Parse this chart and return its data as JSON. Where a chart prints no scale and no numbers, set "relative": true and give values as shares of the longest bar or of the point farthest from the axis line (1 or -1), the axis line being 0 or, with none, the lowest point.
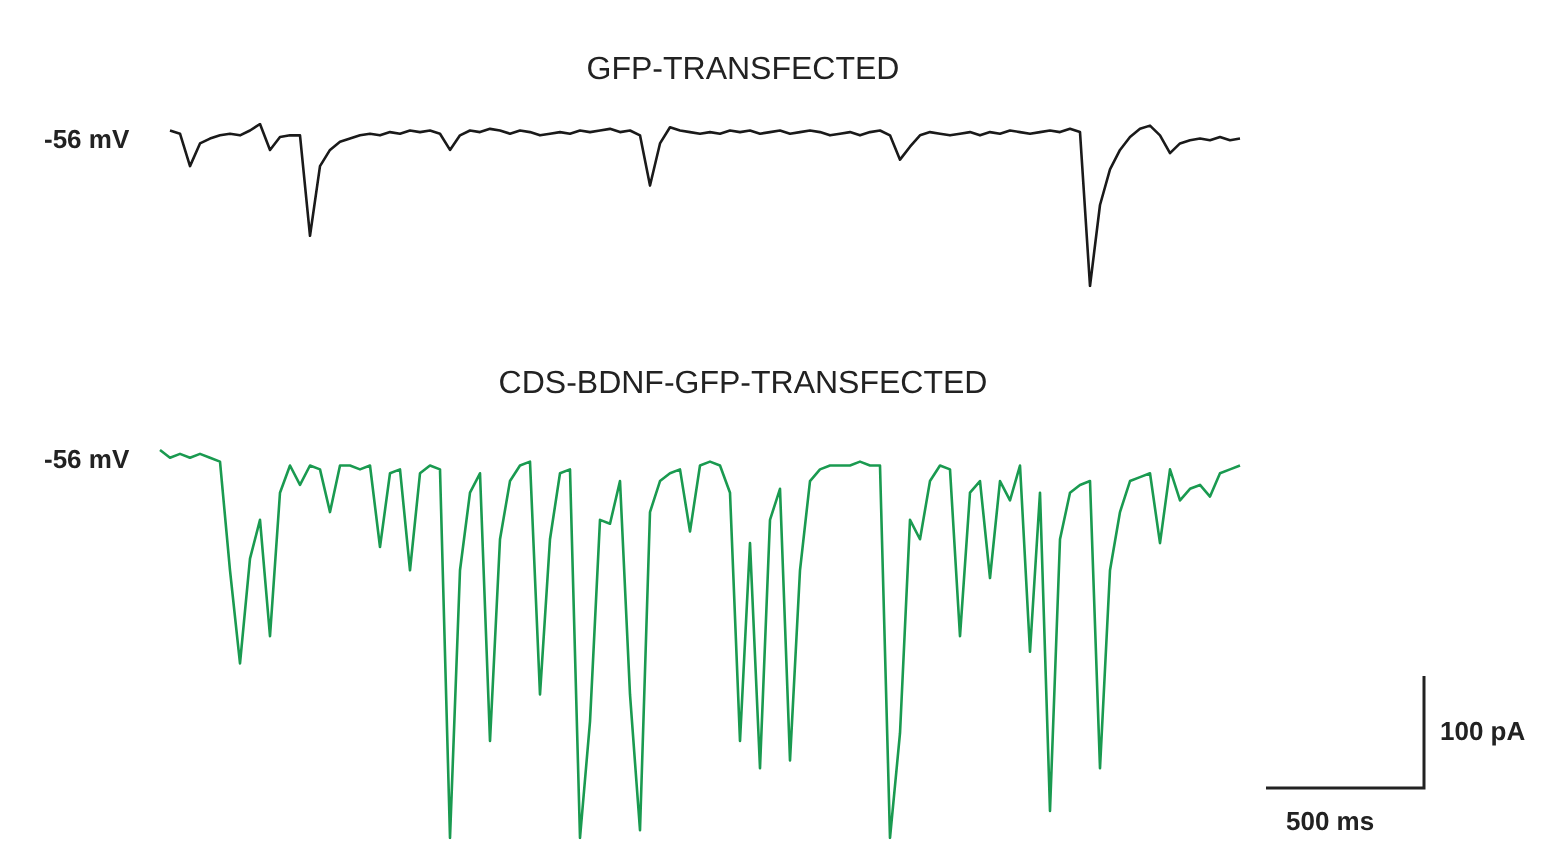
{
  "chart_data": [
    {
      "type": "line",
      "title": "GFP-TRANSFECTED",
      "annotations": [
        "-56 mV"
      ],
      "relative": true,
      "marker": "none",
      "categories": [
        null,
        null,
        null,
        null,
        null,
        null,
        null,
        null,
        null,
        null,
        null,
        null,
        null,
        null,
        null,
        null,
        null,
        null,
        null,
        null,
        null,
        null,
        null,
        null,
        null,
        null,
        null,
        null,
        null,
        null,
        null,
        null,
        null,
        null,
        null,
        null,
        null,
        null,
        null,
        null,
        null,
        null,
        null,
        null,
        null,
        null,
        null,
        null,
        null,
        null,
        null,
        null,
        null,
        null,
        null,
        null,
        null,
        null,
        null,
        null,
        null,
        null,
        null,
        null,
        null,
        null,
        null,
        null,
        null,
        null,
        null,
        null,
        null,
        null,
        null,
        null,
        null,
        null,
        null,
        null,
        null,
        null,
        null,
        null,
        null,
        null,
        null,
        null,
        null,
        null,
        null,
        null,
        null,
        null,
        null,
        null,
        null,
        null,
        null,
        null,
        null,
        null,
        null,
        null,
        null,
        null,
        null,
        null
      ],
      "series": [
        {
          "color": "#1a1a1a",
          "values": [
            0.96,
            0.94,
            0.74,
            0.88,
            0.91,
            0.93,
            0.94,
            0.93,
            0.96,
            1.0,
            0.84,
            0.92,
            0.93,
            0.93,
            0.31,
            0.74,
            0.84,
            0.89,
            0.91,
            0.93,
            0.94,
            0.93,
            0.95,
            0.94,
            0.96,
            0.95,
            0.96,
            0.94,
            0.84,
            0.93,
            0.96,
            0.95,
            0.97,
            0.96,
            0.94,
            0.96,
            0.95,
            0.93,
            0.94,
            0.95,
            0.94,
            0.96,
            0.95,
            0.96,
            0.97,
            0.95,
            0.96,
            0.93,
            0.62,
            0.88,
            0.98,
            0.96,
            0.95,
            0.94,
            0.95,
            0.94,
            0.96,
            0.95,
            0.96,
            0.94,
            0.95,
            0.96,
            0.94,
            0.95,
            0.96,
            0.95,
            0.93,
            0.94,
            0.95,
            0.93,
            0.95,
            0.96,
            0.93,
            0.78,
            0.86,
            0.93,
            0.95,
            0.94,
            0.93,
            0.94,
            0.95,
            0.93,
            0.95,
            0.94,
            0.96,
            0.95,
            0.94,
            0.95,
            0.96,
            0.95,
            0.97,
            0.95,
            0,
            0.5,
            0.72,
            0.84,
            0.92,
            0.97,
            0.99,
            0.93,
            0.82,
            0.88,
            0.9,
            0.91,
            0.9,
            0.92,
            0.9,
            0.91
          ]
        }
      ]
    },
    {
      "type": "line",
      "title": "CDS-BDNF-GFP-TRANSFECTED",
      "annotations": [
        "-56 mV",
        "100 pA",
        "500 ms"
      ],
      "relative": true,
      "marker": "none",
      "categories": [
        null,
        null,
        null,
        null,
        null,
        null,
        null,
        null,
        null,
        null,
        null,
        null,
        null,
        null,
        null,
        null,
        null,
        null,
        null,
        null,
        null,
        null,
        null,
        null,
        null,
        null,
        null,
        null,
        null,
        null,
        null,
        null,
        null,
        null,
        null,
        null,
        null,
        null,
        null,
        null,
        null,
        null,
        null,
        null,
        null,
        null,
        null,
        null,
        null,
        null,
        null,
        null,
        null,
        null,
        null,
        null,
        null,
        null,
        null,
        null,
        null,
        null,
        null,
        null,
        null,
        null,
        null,
        null,
        null,
        null,
        null,
        null,
        null,
        null,
        null,
        null,
        null,
        null,
        null,
        null,
        null,
        null,
        null,
        null,
        null,
        null,
        null,
        null,
        null,
        null,
        null,
        null,
        null,
        null,
        null,
        null,
        null,
        null,
        null,
        null,
        null,
        null,
        null,
        null,
        null,
        null,
        null,
        null,
        null
      ],
      "series": [
        {
          "color": "#1a9a50",
          "values": [
            1,
            0.98,
            0.99,
            0.98,
            0.99,
            0.98,
            0.97,
            0.69,
            0.45,
            0.72,
            0.82,
            0.52,
            0.89,
            0.96,
            0.91,
            0.96,
            0.95,
            0.84,
            0.96,
            0.96,
            0.95,
            0.96,
            0.75,
            0.94,
            0.95,
            0.69,
            0.94,
            0.96,
            0.95,
            0,
            0.69,
            0.89,
            0.94,
            0.25,
            0.77,
            0.92,
            0.96,
            0.97,
            0.37,
            0.77,
            0.94,
            0.95,
            0,
            0.3,
            0.82,
            0.81,
            0.92,
            0.37,
            0.02,
            0.84,
            0.92,
            0.94,
            0.95,
            0.79,
            0.96,
            0.97,
            0.96,
            0.89,
            0.25,
            0.76,
            0.18,
            0.82,
            0.9,
            0.2,
            0.69,
            0.92,
            0.95,
            0.96,
            0.96,
            0.96,
            0.97,
            0.96,
            0.96,
            0,
            0.27,
            0.82,
            0.77,
            0.92,
            0.96,
            0.95,
            0.52,
            0.89,
            0.92,
            0.67,
            0.92,
            0.87,
            0.96,
            0.48,
            0.89,
            0.07,
            0.77,
            0.89,
            0.91,
            0.92,
            0.18,
            0.69,
            0.84,
            0.92,
            0.93,
            0.94,
            0.76,
            0.95,
            0.87,
            0.9,
            0.91,
            0.88,
            0.94,
            0.95,
            0.96
          ]
        }
      ]
    }
  ]
}
